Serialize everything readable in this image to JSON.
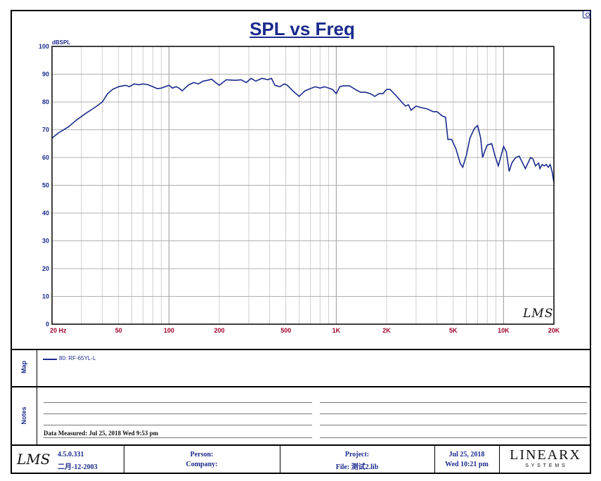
{
  "chart_data": {
    "type": "line",
    "title": "SPL vs Freq",
    "ylabel": "dBSPL",
    "x_scale": "log",
    "xlim": [
      20,
      20000
    ],
    "ylim": [
      0,
      100
    ],
    "grid": true,
    "y_ticks": [
      "0",
      "10",
      "20",
      "30",
      "40",
      "50",
      "60",
      "70",
      "80",
      "90",
      "100"
    ],
    "x_ticks": [
      {
        "label": "20 Hz",
        "value": 20
      },
      {
        "label": "50",
        "value": 50
      },
      {
        "label": "100",
        "value": 100
      },
      {
        "label": "200",
        "value": 200
      },
      {
        "label": "500",
        "value": 500
      },
      {
        "label": "1K",
        "value": 1000
      },
      {
        "label": "2K",
        "value": 2000
      },
      {
        "label": "5K",
        "value": 5000
      },
      {
        "label": "10K",
        "value": 10000
      },
      {
        "label": "20K",
        "value": 20000
      }
    ],
    "series": [
      {
        "name": "80: RF-65YL-L",
        "color": "#1a2a8c",
        "points": [
          [
            20,
            67
          ],
          [
            22,
            69
          ],
          [
            25,
            71
          ],
          [
            28,
            73.5
          ],
          [
            32,
            76
          ],
          [
            36,
            78
          ],
          [
            40,
            80
          ],
          [
            43,
            83
          ],
          [
            46,
            84.5
          ],
          [
            50,
            85.5
          ],
          [
            55,
            86
          ],
          [
            58,
            85.5
          ],
          [
            62,
            86.5
          ],
          [
            66,
            86.2
          ],
          [
            70,
            86.5
          ],
          [
            75,
            86.2
          ],
          [
            80,
            85.5
          ],
          [
            85,
            84.8
          ],
          [
            90,
            85
          ],
          [
            95,
            85.5
          ],
          [
            100,
            86
          ],
          [
            105,
            85
          ],
          [
            110,
            85.5
          ],
          [
            115,
            85
          ],
          [
            120,
            84
          ],
          [
            130,
            86
          ],
          [
            140,
            87
          ],
          [
            150,
            86.5
          ],
          [
            160,
            87.5
          ],
          [
            170,
            87.8
          ],
          [
            180,
            88.2
          ],
          [
            190,
            87
          ],
          [
            200,
            86
          ],
          [
            220,
            88
          ],
          [
            250,
            87.8
          ],
          [
            270,
            88
          ],
          [
            290,
            87
          ],
          [
            310,
            88.5
          ],
          [
            330,
            87.5
          ],
          [
            360,
            88.5
          ],
          [
            390,
            88
          ],
          [
            410,
            88.5
          ],
          [
            430,
            86
          ],
          [
            460,
            85.5
          ],
          [
            490,
            86.5
          ],
          [
            510,
            86
          ],
          [
            550,
            84
          ],
          [
            600,
            82
          ],
          [
            650,
            84
          ],
          [
            700,
            84.8
          ],
          [
            750,
            85.5
          ],
          [
            800,
            85
          ],
          [
            850,
            85.5
          ],
          [
            900,
            85
          ],
          [
            950,
            84.5
          ],
          [
            1000,
            83
          ],
          [
            1050,
            85.5
          ],
          [
            1100,
            85.8
          ],
          [
            1200,
            85.8
          ],
          [
            1300,
            84.5
          ],
          [
            1400,
            83.5
          ],
          [
            1500,
            83.5
          ],
          [
            1600,
            83
          ],
          [
            1700,
            82
          ],
          [
            1800,
            83
          ],
          [
            1900,
            83
          ],
          [
            2000,
            84.5
          ],
          [
            2100,
            84.5
          ],
          [
            2300,
            82
          ],
          [
            2500,
            79.5
          ],
          [
            2600,
            78.5
          ],
          [
            2700,
            79
          ],
          [
            2800,
            77
          ],
          [
            3000,
            78.5
          ],
          [
            3200,
            78
          ],
          [
            3500,
            77.5
          ],
          [
            3800,
            76.5
          ],
          [
            4000,
            76.5
          ],
          [
            4300,
            75
          ],
          [
            4500,
            74.5
          ],
          [
            4650,
            66.5
          ],
          [
            4900,
            66.5
          ],
          [
            5200,
            63
          ],
          [
            5500,
            58
          ],
          [
            5700,
            56.5
          ],
          [
            6000,
            61
          ],
          [
            6300,
            67
          ],
          [
            6700,
            70.5
          ],
          [
            7000,
            71.5
          ],
          [
            7300,
            67
          ],
          [
            7500,
            60
          ],
          [
            7800,
            63
          ],
          [
            8000,
            64.5
          ],
          [
            8500,
            65
          ],
          [
            8900,
            60.5
          ],
          [
            9300,
            57
          ],
          [
            9700,
            61
          ],
          [
            10000,
            64
          ],
          [
            10400,
            62
          ],
          [
            10800,
            55
          ],
          [
            11200,
            58
          ],
          [
            11800,
            60
          ],
          [
            12400,
            60.5
          ],
          [
            13000,
            58
          ],
          [
            13500,
            56
          ],
          [
            14000,
            58
          ],
          [
            14500,
            60
          ],
          [
            15000,
            59.5
          ],
          [
            15500,
            57
          ],
          [
            16200,
            58
          ],
          [
            16500,
            56
          ],
          [
            17000,
            57.5
          ],
          [
            17500,
            57
          ],
          [
            18000,
            57.5
          ],
          [
            18500,
            56.5
          ],
          [
            19000,
            57.5
          ],
          [
            19500,
            55
          ],
          [
            20000,
            51
          ]
        ]
      }
    ]
  },
  "watermark": "LMS",
  "map": {
    "label": "Map",
    "legend_entry": "80: RF-65YL-L"
  },
  "notes": {
    "label": "Notes",
    "date_measured": "Data Measured: Jul 25, 2018  Wed  9:53 pm"
  },
  "footer": {
    "logo": "LMS",
    "version": "4.5.0.331",
    "version_date": "二月-12-2003",
    "person_label": "Person:",
    "company_label": "Company:",
    "project_label": "Project:",
    "file_label": "File: 测试2.lib",
    "date": "Jul 25, 2018",
    "time": "Wed 10:21 pm",
    "brand_top": "LINEARX",
    "brand_bottom": "S Y S T E M S"
  },
  "colors": {
    "curve": "#1a2a8c",
    "axis_labels": "#a0002a",
    "y_labels": "#1a2a8c",
    "title": "#1a2a8c"
  }
}
